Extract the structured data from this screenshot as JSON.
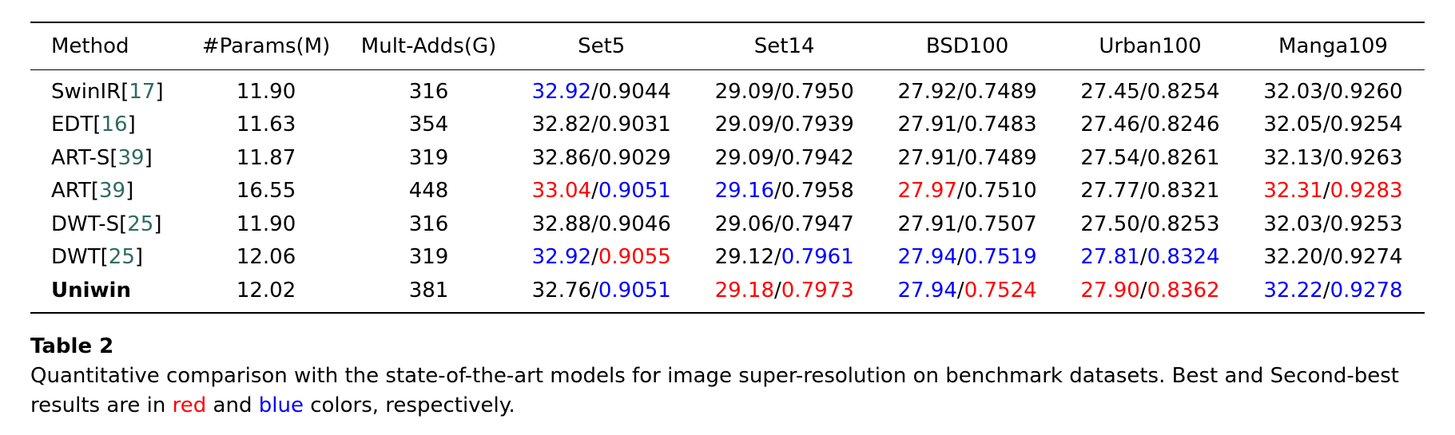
{
  "colors": {
    "red": "#ff0000",
    "blue": "#0000ff",
    "black": "#000000",
    "cite": "#2f6b60"
  },
  "table": {
    "headers": [
      "Method",
      "#Params(M)",
      "Mult-Adds(G)",
      "Set5",
      "Set14",
      "BSD100",
      "Urban100",
      "Manga109"
    ],
    "rows": [
      {
        "name": "SwinIR",
        "cite": "17",
        "bold": false,
        "params": "11.90",
        "adds": "316",
        "scores": [
          {
            "psnr": "32.92",
            "psnr_color": "blue",
            "ssim": "0.9044",
            "ssim_color": "black"
          },
          {
            "psnr": "29.09",
            "psnr_color": "black",
            "ssim": "0.7950",
            "ssim_color": "black"
          },
          {
            "psnr": "27.92",
            "psnr_color": "black",
            "ssim": "0.7489",
            "ssim_color": "black"
          },
          {
            "psnr": "27.45",
            "psnr_color": "black",
            "ssim": "0.8254",
            "ssim_color": "black"
          },
          {
            "psnr": "32.03",
            "psnr_color": "black",
            "ssim": "0.9260",
            "ssim_color": "black"
          }
        ]
      },
      {
        "name": "EDT",
        "cite": "16",
        "bold": false,
        "params": "11.63",
        "adds": "354",
        "scores": [
          {
            "psnr": "32.82",
            "psnr_color": "black",
            "ssim": "0.9031",
            "ssim_color": "black"
          },
          {
            "psnr": "29.09",
            "psnr_color": "black",
            "ssim": "0.7939",
            "ssim_color": "black"
          },
          {
            "psnr": "27.91",
            "psnr_color": "black",
            "ssim": "0.7483",
            "ssim_color": "black"
          },
          {
            "psnr": "27.46",
            "psnr_color": "black",
            "ssim": "0.8246",
            "ssim_color": "black"
          },
          {
            "psnr": "32.05",
            "psnr_color": "black",
            "ssim": "0.9254",
            "ssim_color": "black"
          }
        ]
      },
      {
        "name": "ART-S",
        "cite": "39",
        "bold": false,
        "params": "11.87",
        "adds": "319",
        "scores": [
          {
            "psnr": "32.86",
            "psnr_color": "black",
            "ssim": "0.9029",
            "ssim_color": "black"
          },
          {
            "psnr": "29.09",
            "psnr_color": "black",
            "ssim": "0.7942",
            "ssim_color": "black"
          },
          {
            "psnr": "27.91",
            "psnr_color": "black",
            "ssim": "0.7489",
            "ssim_color": "black"
          },
          {
            "psnr": "27.54",
            "psnr_color": "black",
            "ssim": "0.8261",
            "ssim_color": "black"
          },
          {
            "psnr": "32.13",
            "psnr_color": "black",
            "ssim": "0.9263",
            "ssim_color": "black"
          }
        ]
      },
      {
        "name": "ART",
        "cite": "39",
        "bold": false,
        "params": "16.55",
        "adds": "448",
        "scores": [
          {
            "psnr": "33.04",
            "psnr_color": "red",
            "ssim": "0.9051",
            "ssim_color": "blue"
          },
          {
            "psnr": "29.16",
            "psnr_color": "blue",
            "ssim": "0.7958",
            "ssim_color": "black"
          },
          {
            "psnr": "27.97",
            "psnr_color": "red",
            "ssim": "0.7510",
            "ssim_color": "black"
          },
          {
            "psnr": "27.77",
            "psnr_color": "black",
            "ssim": "0.8321",
            "ssim_color": "black"
          },
          {
            "psnr": "32.31",
            "psnr_color": "red",
            "ssim": "0.9283",
            "ssim_color": "red"
          }
        ]
      },
      {
        "name": "DWT-S",
        "cite": "25",
        "bold": false,
        "params": "11.90",
        "adds": "316",
        "scores": [
          {
            "psnr": "32.88",
            "psnr_color": "black",
            "ssim": "0.9046",
            "ssim_color": "black"
          },
          {
            "psnr": "29.06",
            "psnr_color": "black",
            "ssim": "0.7947",
            "ssim_color": "black"
          },
          {
            "psnr": "27.91",
            "psnr_color": "black",
            "ssim": "0.7507",
            "ssim_color": "black"
          },
          {
            "psnr": "27.50",
            "psnr_color": "black",
            "ssim": "0.8253",
            "ssim_color": "black"
          },
          {
            "psnr": "32.03",
            "psnr_color": "black",
            "ssim": "0.9253",
            "ssim_color": "black"
          }
        ]
      },
      {
        "name": "DWT",
        "cite": "25",
        "bold": false,
        "params": "12.06",
        "adds": "319",
        "scores": [
          {
            "psnr": "32.92",
            "psnr_color": "blue",
            "ssim": "0.9055",
            "ssim_color": "red"
          },
          {
            "psnr": "29.12",
            "psnr_color": "black",
            "ssim": "0.7961",
            "ssim_color": "blue"
          },
          {
            "psnr": "27.94",
            "psnr_color": "blue",
            "ssim": "0.7519",
            "ssim_color": "blue"
          },
          {
            "psnr": "27.81",
            "psnr_color": "blue",
            "ssim": "0.8324",
            "ssim_color": "blue"
          },
          {
            "psnr": "32.20",
            "psnr_color": "black",
            "ssim": "0.9274",
            "ssim_color": "black"
          }
        ]
      },
      {
        "name": "Uniwin",
        "cite": "",
        "bold": true,
        "params": "12.02",
        "adds": "381",
        "scores": [
          {
            "psnr": "32.76",
            "psnr_color": "black",
            "ssim": "0.9051",
            "ssim_color": "blue"
          },
          {
            "psnr": "29.18",
            "psnr_color": "red",
            "ssim": "0.7973",
            "ssim_color": "red"
          },
          {
            "psnr": "27.94",
            "psnr_color": "blue",
            "ssim": "0.7524",
            "ssim_color": "red"
          },
          {
            "psnr": "27.90",
            "psnr_color": "red",
            "ssim": "0.8362",
            "ssim_color": "red"
          },
          {
            "psnr": "32.22",
            "psnr_color": "blue",
            "ssim": "0.9278",
            "ssim_color": "blue"
          }
        ]
      }
    ]
  },
  "caption": {
    "title": "Table 2",
    "text_before_red": "Quantitative comparison with the state-of-the-art models for image super-resolution on benchmark datasets. Best and Second-best results are in ",
    "red_word": "red",
    "text_between": " and ",
    "blue_word": "blue",
    "text_after": " colors, respectively."
  }
}
